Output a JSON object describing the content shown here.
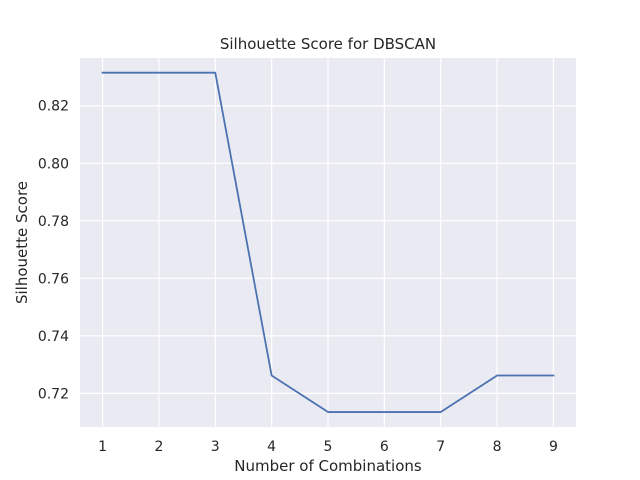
{
  "chart_data": {
    "type": "line",
    "title": "Silhouette Score for DBSCAN",
    "xlabel": "Number of Combinations",
    "ylabel": "Silhouette Score",
    "x": [
      1,
      2,
      3,
      4,
      5,
      6,
      7,
      8,
      9
    ],
    "xticks": [
      "1",
      "2",
      "3",
      "4",
      "5",
      "6",
      "7",
      "8",
      "9"
    ],
    "yticks": [
      "0.72",
      "0.74",
      "0.76",
      "0.78",
      "0.80",
      "0.82"
    ],
    "xlim": [
      0.6,
      9.4
    ],
    "ylim": [
      0.7083,
      0.8366
    ],
    "grid": true,
    "series": [
      {
        "values": [
          0.8315,
          0.8315,
          0.8315,
          0.7262,
          0.7135,
          0.7135,
          0.7135,
          0.7262,
          0.7262
        ]
      }
    ],
    "colors": {
      "line": "#4c72b0",
      "plot_background": "#eaeaf2",
      "grid": "#ffffff",
      "text": "#262626"
    }
  }
}
